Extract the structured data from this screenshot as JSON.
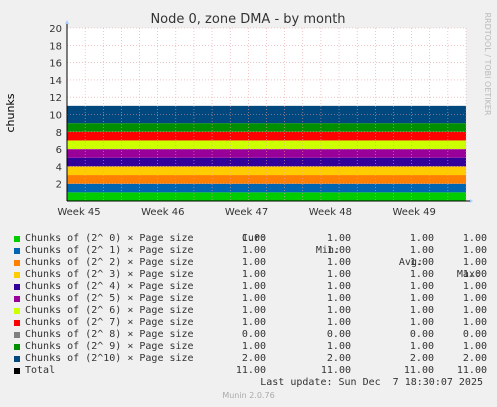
{
  "chart_data": {
    "type": "area",
    "stacked": true,
    "title": "Node 0, zone DMA - by month",
    "ylabel": "chunks",
    "ylim": [
      0,
      20
    ],
    "yticks": [
      2,
      4,
      6,
      8,
      10,
      12,
      14,
      16,
      18,
      20
    ],
    "x_ticks": [
      "Week 45",
      "Week 46",
      "Week 47",
      "Week 48",
      "Week 49"
    ],
    "grid": true,
    "series": [
      {
        "name": "Chunks of (2^ 0) × Page size",
        "color": "#00cc00",
        "value": 1.0,
        "cur": "1.00",
        "min": "1.00",
        "avg": "1.00",
        "max": "1.00"
      },
      {
        "name": "Chunks of (2^ 1) × Page size",
        "color": "#0066b3",
        "value": 1.0,
        "cur": "1.00",
        "min": "1.00",
        "avg": "1.00",
        "max": "1.00"
      },
      {
        "name": "Chunks of (2^ 2) × Page size",
        "color": "#ff8000",
        "value": 1.0,
        "cur": "1.00",
        "min": "1.00",
        "avg": "1.00",
        "max": "1.00"
      },
      {
        "name": "Chunks of (2^ 3) × Page size",
        "color": "#ffcc00",
        "value": 1.0,
        "cur": "1.00",
        "min": "1.00",
        "avg": "1.00",
        "max": "1.00"
      },
      {
        "name": "Chunks of (2^ 4) × Page size",
        "color": "#330099",
        "value": 1.0,
        "cur": "1.00",
        "min": "1.00",
        "avg": "1.00",
        "max": "1.00"
      },
      {
        "name": "Chunks of (2^ 5) × Page size",
        "color": "#990099",
        "value": 1.0,
        "cur": "1.00",
        "min": "1.00",
        "avg": "1.00",
        "max": "1.00"
      },
      {
        "name": "Chunks of (2^ 6) × Page size",
        "color": "#ccff00",
        "value": 1.0,
        "cur": "1.00",
        "min": "1.00",
        "avg": "1.00",
        "max": "1.00"
      },
      {
        "name": "Chunks of (2^ 7) × Page size",
        "color": "#ff0000",
        "value": 1.0,
        "cur": "1.00",
        "min": "1.00",
        "avg": "1.00",
        "max": "1.00"
      },
      {
        "name": "Chunks of (2^ 8) × Page size",
        "color": "#808080",
        "value": 0.0,
        "cur": "0.00",
        "min": "0.00",
        "avg": "0.00",
        "max": "0.00"
      },
      {
        "name": "Chunks of (2^ 9) × Page size",
        "color": "#008f00",
        "value": 1.0,
        "cur": "1.00",
        "min": "1.00",
        "avg": "1.00",
        "max": "1.00"
      },
      {
        "name": "Chunks of (2^10) × Page size",
        "color": "#00487d",
        "value": 2.0,
        "cur": "2.00",
        "min": "2.00",
        "avg": "2.00",
        "max": "2.00"
      },
      {
        "name": "Total",
        "color": "#000000",
        "cur": "11.00",
        "min": "11.00",
        "avg": "11.00",
        "max": "11.00"
      }
    ]
  },
  "legend_headers": {
    "cur": "Cur:",
    "min": "Min:",
    "avg": "Avg:",
    "max": "Max:"
  },
  "last_update": "Last update: Sun Dec  7 18:30:07 2025",
  "watermark": "RRDTOOL / TOBI OETIKER",
  "footer": "Munin 2.0.76"
}
